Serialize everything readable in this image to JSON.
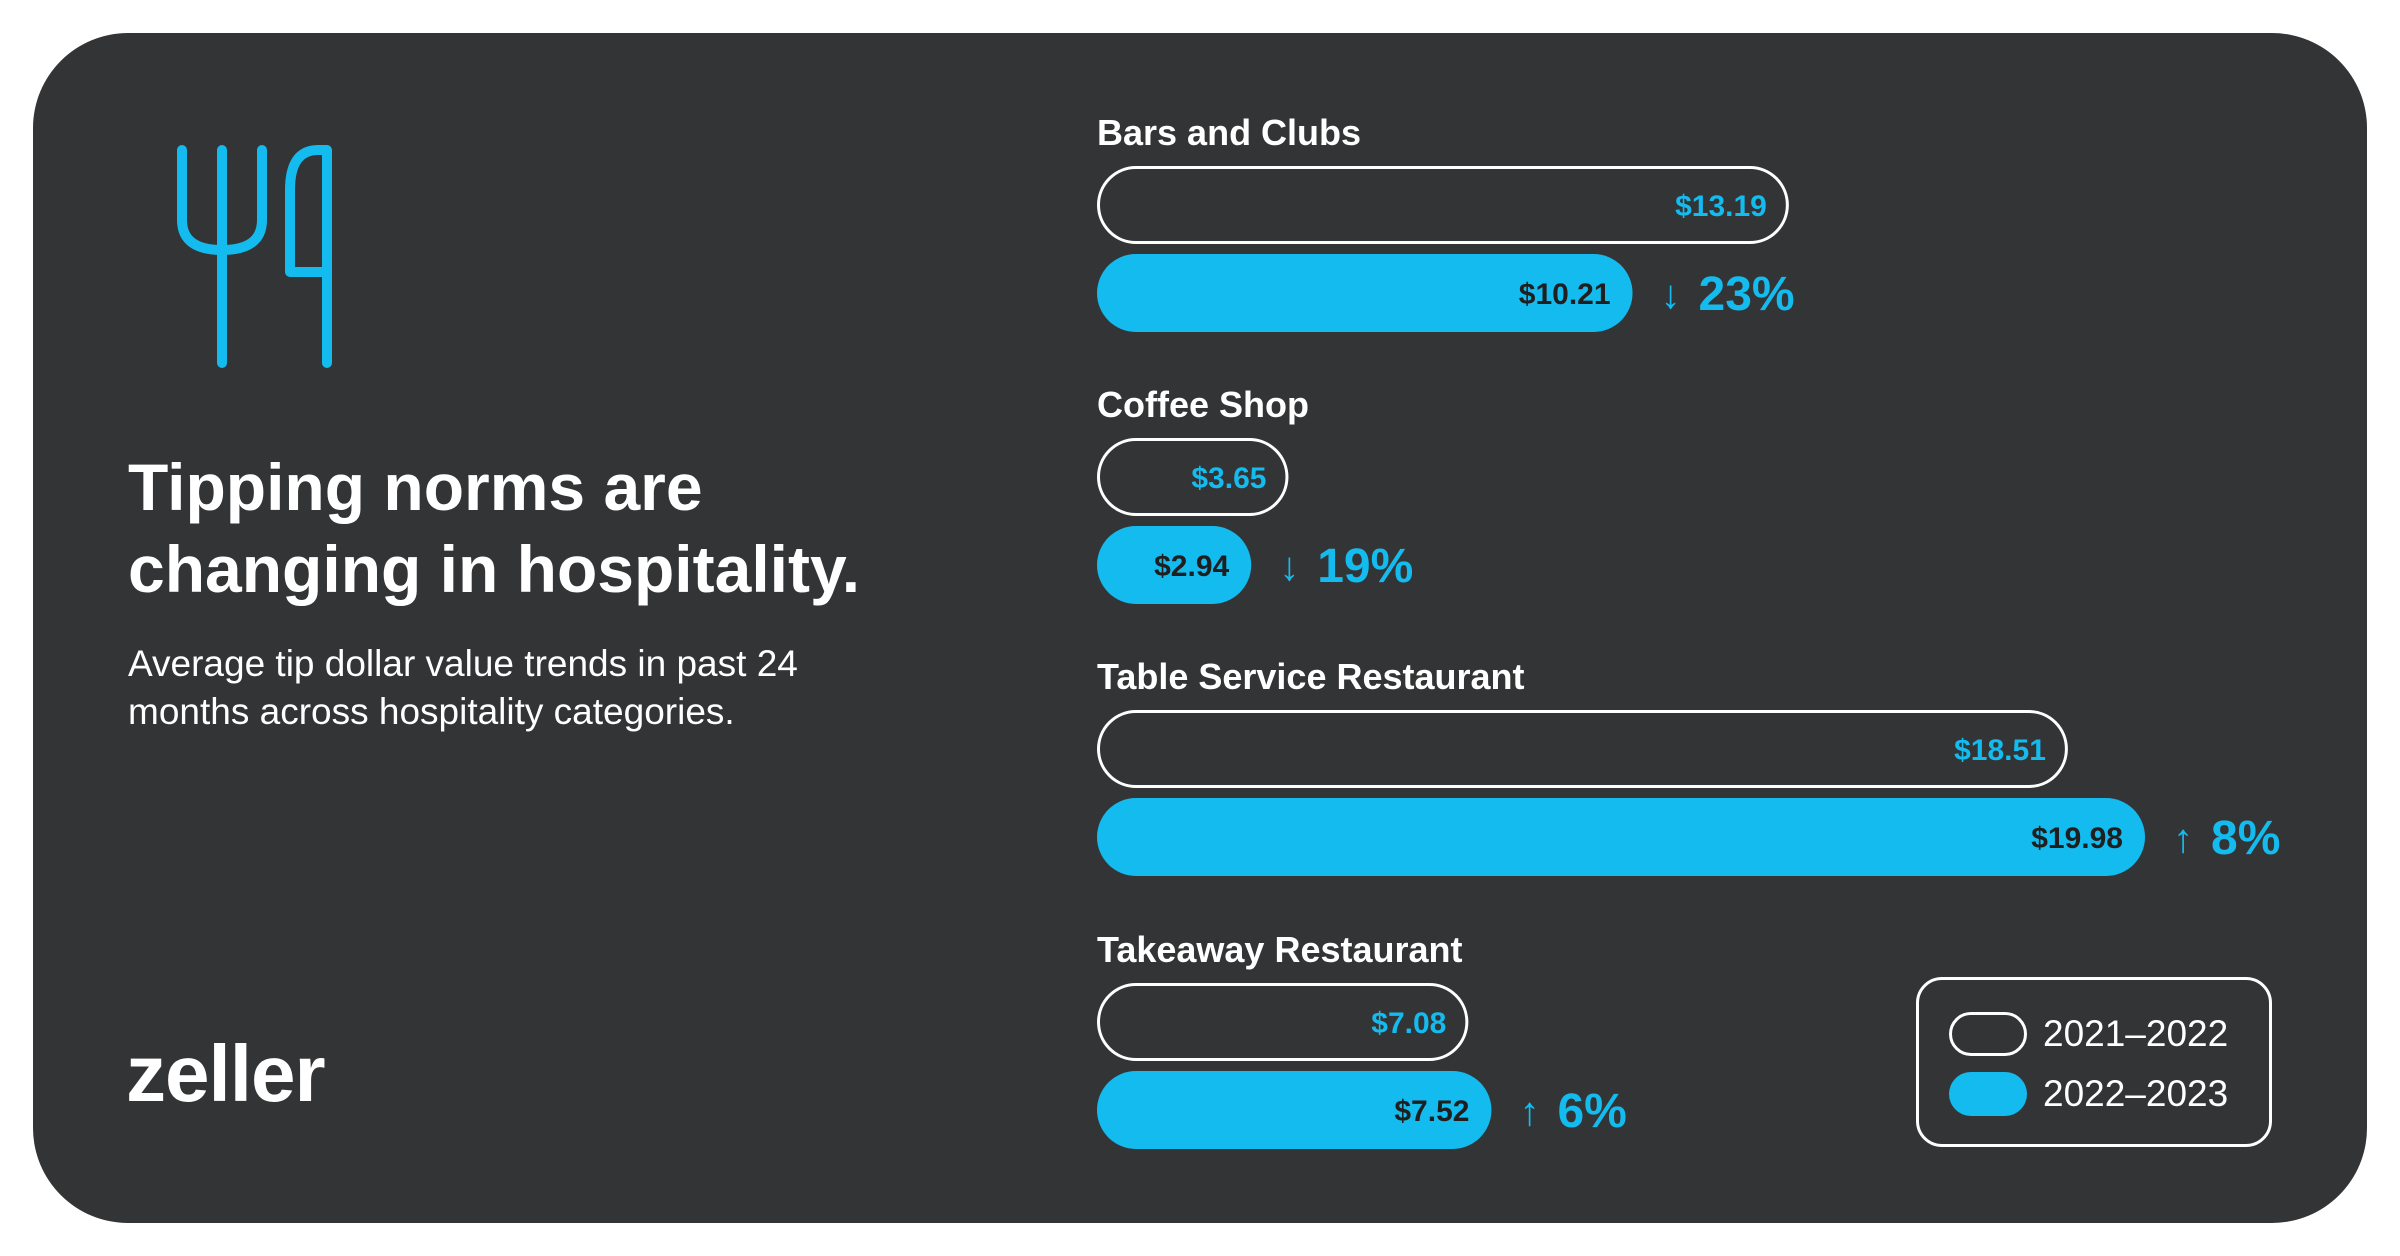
{
  "headline": "Tipping norms are changing in hospitality.",
  "subtitle": "Average tip dollar value trends in past 24 months across hospitality categories.",
  "logo": "zeller",
  "icon": "fork-and-knife-icon",
  "colors": {
    "background": "#333435",
    "accent": "#14bbef",
    "text": "#ffffff",
    "filled_bar_text": "#1f1f1f"
  },
  "legend": {
    "previous": "2021–2022",
    "current": "2022–2023"
  },
  "chart_data": {
    "type": "bar",
    "orientation": "horizontal",
    "xlim": [
      0,
      19.98
    ],
    "categories": [
      "Bars and Clubs",
      "Coffee Shop",
      "Table Service Restaurant",
      "Takeaway Restaurant"
    ],
    "series": [
      {
        "name": "2021–2022",
        "values": [
          13.19,
          3.65,
          18.51,
          7.08
        ],
        "labels": [
          "$13.19",
          "$3.65",
          "$18.51",
          "$7.08"
        ]
      },
      {
        "name": "2022–2023",
        "values": [
          10.21,
          2.94,
          19.98,
          7.52
        ],
        "labels": [
          "$10.21",
          "$2.94",
          "$19.98",
          "$7.52"
        ]
      }
    ],
    "changes": [
      {
        "direction": "down",
        "arrow": "↓",
        "value": "23%"
      },
      {
        "direction": "down",
        "arrow": "↓",
        "value": "19%"
      },
      {
        "direction": "up",
        "arrow": "↑",
        "value": "8%"
      },
      {
        "direction": "up",
        "arrow": "↑",
        "value": "6%"
      }
    ]
  }
}
